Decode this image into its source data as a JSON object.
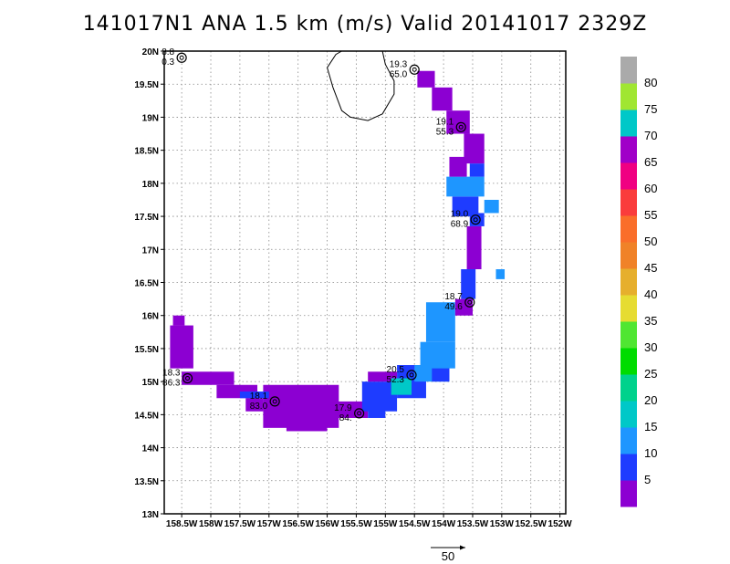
{
  "title": "141017N1 ANA 1.5 km (m/s) Valid 20141017  2329Z",
  "chart_data": {
    "type": "heatmap",
    "title": "141017N1 ANA 1.5 km (m/s) Valid 20141017  2329Z",
    "units": "m/s",
    "xlim": [
      -158.8,
      -151.9
    ],
    "ylim": [
      13.0,
      20.0
    ],
    "grid": true,
    "x_ticks": [
      {
        "value": -158.5,
        "label": "158.5W"
      },
      {
        "value": -158.0,
        "label": "158W"
      },
      {
        "value": -157.5,
        "label": "157.5W"
      },
      {
        "value": -157.0,
        "label": "157W"
      },
      {
        "value": -156.5,
        "label": "156.5W"
      },
      {
        "value": -156.0,
        "label": "156W"
      },
      {
        "value": -155.5,
        "label": "155.5W"
      },
      {
        "value": -155.0,
        "label": "155W"
      },
      {
        "value": -154.5,
        "label": "154.5W"
      },
      {
        "value": -154.0,
        "label": "154W"
      },
      {
        "value": -153.5,
        "label": "153.5W"
      },
      {
        "value": -153.0,
        "label": "153W"
      },
      {
        "value": -152.5,
        "label": "152.5W"
      },
      {
        "value": -152.0,
        "label": "152W"
      }
    ],
    "y_ticks": [
      {
        "value": 13.0,
        "label": "13N"
      },
      {
        "value": 13.5,
        "label": "13.5N"
      },
      {
        "value": 14.0,
        "label": "14N"
      },
      {
        "value": 14.5,
        "label": "14.5N"
      },
      {
        "value": 15.0,
        "label": "15N"
      },
      {
        "value": 15.5,
        "label": "15.5N"
      },
      {
        "value": 16.0,
        "label": "16N"
      },
      {
        "value": 16.5,
        "label": "16.5N"
      },
      {
        "value": 17.0,
        "label": "17N"
      },
      {
        "value": 17.5,
        "label": "17.5N"
      },
      {
        "value": 18.0,
        "label": "18N"
      },
      {
        "value": 18.5,
        "label": "18.5N"
      },
      {
        "value": 19.0,
        "label": "19N"
      },
      {
        "value": 19.5,
        "label": "19.5N"
      },
      {
        "value": 20.0,
        "label": "20N"
      }
    ],
    "colorbar": [
      {
        "label": "5",
        "color": "#8c00d2"
      },
      {
        "label": "10",
        "color": "#1e3cff"
      },
      {
        "label": "15",
        "color": "#1e96ff"
      },
      {
        "label": "20",
        "color": "#00c8c8"
      },
      {
        "label": "25",
        "color": "#00d28c"
      },
      {
        "label": "30",
        "color": "#00dc00"
      },
      {
        "label": "35",
        "color": "#50e632"
      },
      {
        "label": "40",
        "color": "#e6dc32"
      },
      {
        "label": "45",
        "color": "#e6af2d"
      },
      {
        "label": "50",
        "color": "#f08228"
      },
      {
        "label": "55",
        "color": "#fa6e2a"
      },
      {
        "label": "60",
        "color": "#fa3c3c"
      },
      {
        "label": "65",
        "color": "#f00082"
      },
      {
        "label": "70",
        "color": "#a000c8"
      },
      {
        "label": "75",
        "color": "#00c8c8"
      },
      {
        "label": "80",
        "color": "#a0e632"
      },
      {
        "label": "",
        "color": "#aaaaaa"
      }
    ],
    "colorbar_labels": [
      "5",
      "10",
      "15",
      "20",
      "25",
      "30",
      "35",
      "40",
      "45",
      "50",
      "55",
      "60",
      "65",
      "70",
      "75",
      "80"
    ],
    "reference_vector": {
      "label": "50",
      "units": "m/s"
    },
    "fixes": [
      {
        "lon": -158.5,
        "lat": 19.9,
        "line1": "8.8",
        "line2": "0.3"
      },
      {
        "lon": -154.5,
        "lat": 19.72,
        "line1": "19.3",
        "line2": "65.0"
      },
      {
        "lon": -153.7,
        "lat": 18.85,
        "line1": "19.1",
        "line2": "55.3"
      },
      {
        "lon": -153.45,
        "lat": 17.45,
        "line1": "19.0",
        "line2": "68.9"
      },
      {
        "lon": -153.55,
        "lat": 16.2,
        "line1": "18.7",
        "line2": "49.6"
      },
      {
        "lon": -154.55,
        "lat": 15.1,
        "line1": "20.5",
        "line2": "52.3"
      },
      {
        "lon": -155.45,
        "lat": 14.52,
        "line1": "17.9",
        "line2": "84."
      },
      {
        "lon": -156.9,
        "lat": 14.7,
        "line1": "18.1",
        "line2": "83.0"
      },
      {
        "lon": -158.4,
        "lat": 15.05,
        "line1": "18.3",
        "line2": "86.3"
      }
    ],
    "cells": [
      {
        "lon": -158.65,
        "lat": 15.85,
        "lon2": -158.45,
        "lat2": 16.0,
        "level": 0
      },
      {
        "lon": -158.7,
        "lat": 15.2,
        "lon2": -158.3,
        "lat2": 15.85,
        "level": 0
      },
      {
        "lon": -158.5,
        "lat": 14.95,
        "lon2": -157.6,
        "lat2": 15.15,
        "level": 0
      },
      {
        "lon": -157.9,
        "lat": 14.75,
        "lon2": -157.2,
        "lat2": 14.95,
        "level": 0
      },
      {
        "lon": -157.4,
        "lat": 14.55,
        "lon2": -157.1,
        "lat2": 14.75,
        "level": 0
      },
      {
        "lon": -157.1,
        "lat": 14.3,
        "lon2": -155.8,
        "lat2": 14.95,
        "level": 0
      },
      {
        "lon": -156.7,
        "lat": 14.25,
        "lon2": -156.0,
        "lat2": 14.35,
        "level": 0
      },
      {
        "lon": -155.9,
        "lat": 14.45,
        "lon2": -155.3,
        "lat2": 14.7,
        "level": 0
      },
      {
        "lon": -157.5,
        "lat": 14.75,
        "lon2": -157.0,
        "lat2": 14.85,
        "level": 1
      },
      {
        "lon": -155.3,
        "lat": 14.45,
        "lon2": -155.0,
        "lat2": 14.6,
        "level": 1
      },
      {
        "lon": -155.4,
        "lat": 14.55,
        "lon2": -154.8,
        "lat2": 15.0,
        "level": 1
      },
      {
        "lon": -155.3,
        "lat": 15.0,
        "lon2": -154.8,
        "lat2": 15.15,
        "level": 0
      },
      {
        "lon": -154.8,
        "lat": 14.75,
        "lon2": -154.3,
        "lat2": 15.25,
        "level": 1
      },
      {
        "lon": -154.9,
        "lat": 14.8,
        "lon2": -154.55,
        "lat2": 15.05,
        "level": 3
      },
      {
        "lon": -154.5,
        "lat": 15.0,
        "lon2": -153.9,
        "lat2": 15.25,
        "level": 2
      },
      {
        "lon": -154.4,
        "lat": 15.2,
        "lon2": -153.8,
        "lat2": 15.6,
        "level": 2
      },
      {
        "lon": -154.3,
        "lat": 15.6,
        "lon2": -153.8,
        "lat2": 16.2,
        "level": 2
      },
      {
        "lon": -154.2,
        "lat": 15.0,
        "lon2": -153.9,
        "lat2": 15.2,
        "level": 1
      },
      {
        "lon": -153.8,
        "lat": 16.0,
        "lon2": -153.5,
        "lat2": 16.25,
        "level": 0
      },
      {
        "lon": -153.7,
        "lat": 16.25,
        "lon2": -153.45,
        "lat2": 16.7,
        "level": 1
      },
      {
        "lon": -153.6,
        "lat": 16.7,
        "lon2": -153.35,
        "lat2": 17.35,
        "level": 0
      },
      {
        "lon": -153.1,
        "lat": 16.55,
        "lon2": -152.95,
        "lat2": 16.7,
        "level": 2
      },
      {
        "lon": -153.55,
        "lat": 17.35,
        "lon2": -153.3,
        "lat2": 17.55,
        "level": 1
      },
      {
        "lon": -153.85,
        "lat": 17.5,
        "lon2": -153.4,
        "lat2": 17.8,
        "level": 1
      },
      {
        "lon": -153.95,
        "lat": 17.8,
        "lon2": -153.3,
        "lat2": 18.1,
        "level": 2
      },
      {
        "lon": -153.3,
        "lat": 17.55,
        "lon2": -153.05,
        "lat2": 17.75,
        "level": 2
      },
      {
        "lon": -153.55,
        "lat": 18.1,
        "lon2": -153.3,
        "lat2": 18.3,
        "level": 1
      },
      {
        "lon": -153.9,
        "lat": 18.1,
        "lon2": -153.6,
        "lat2": 18.4,
        "level": 0
      },
      {
        "lon": -153.65,
        "lat": 18.3,
        "lon2": -153.3,
        "lat2": 18.75,
        "level": 0
      },
      {
        "lon": -153.95,
        "lat": 18.75,
        "lon2": -153.55,
        "lat2": 19.1,
        "level": 0
      },
      {
        "lon": -154.2,
        "lat": 19.1,
        "lon2": -153.85,
        "lat2": 19.45,
        "level": 0
      },
      {
        "lon": -154.45,
        "lat": 19.45,
        "lon2": -154.15,
        "lat2": 19.7,
        "level": 0
      }
    ],
    "coastline": [
      [
        -155.05,
        20.0
      ],
      [
        -155.0,
        19.8
      ],
      [
        -154.85,
        19.55
      ],
      [
        -154.85,
        19.35
      ],
      [
        -155.05,
        19.05
      ],
      [
        -155.3,
        18.95
      ],
      [
        -155.6,
        19.0
      ],
      [
        -155.75,
        19.1
      ],
      [
        -155.9,
        19.45
      ],
      [
        -156.0,
        19.75
      ],
      [
        -155.85,
        19.95
      ],
      [
        -155.75,
        20.0
      ]
    ]
  }
}
